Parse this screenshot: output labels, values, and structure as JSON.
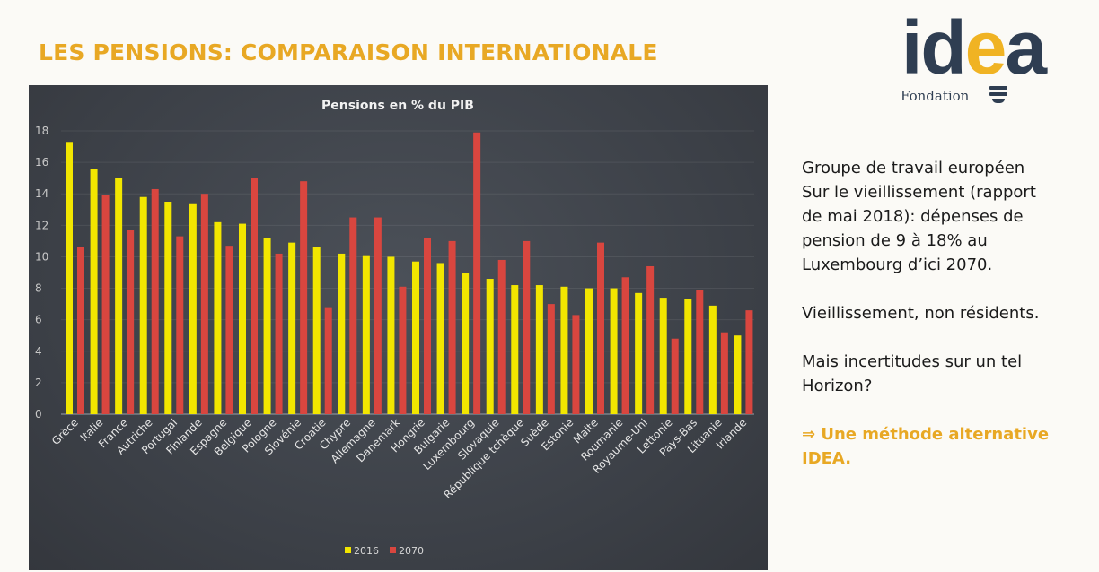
{
  "slide": {
    "title": "LES PENSIONS: COMPARAISON INTERNATIONALE",
    "logo": {
      "word_left": "id",
      "word_e": "e",
      "word_right": "a",
      "subtitle": "Fondation"
    },
    "side_text": {
      "p1": [
        "Groupe de travail européen",
        "Sur le vieillissement (rapport",
        "de mai 2018): dépenses de",
        "pension de 9 à 18% au",
        "Luxembourg d’ici 2070."
      ],
      "p2": "Vieillissement, non résidents.",
      "p3": [
        "Mais incertitudes sur un tel",
        "Horizon?"
      ],
      "p4": [
        "⇒ Une méthode alternative",
        "IDEA."
      ]
    }
  },
  "colors": {
    "accent": "#e8a824",
    "series2016": "#f2e600",
    "series2070": "#d9463f",
    "chart_bg": "#3e4249"
  },
  "chart_data": {
    "type": "bar",
    "title": "Pensions en % du PIB",
    "xlabel": "",
    "ylabel": "",
    "ylim": [
      0,
      18
    ],
    "yticks": [
      0,
      2,
      4,
      6,
      8,
      10,
      12,
      14,
      16,
      18
    ],
    "grid": true,
    "legend_position": "bottom",
    "categories": [
      "Grèce",
      "Italie",
      "France",
      "Autriche",
      "Portugal",
      "Finlande",
      "Espagne",
      "Belgique",
      "Pologne",
      "Slovénie",
      "Croatie",
      "Chypre",
      "Allemagne",
      "Danemark",
      "Hongrie",
      "Bulgarie",
      "Luxembourg",
      "Slovaquie",
      "République tchèque",
      "Suède",
      "Estonie",
      "Malte",
      "Roumanie",
      "Royaume-Uni",
      "Lettonie",
      "Pays-Bas",
      "Lituanie",
      "Irlande"
    ],
    "series": [
      {
        "name": "2016",
        "values": [
          17.3,
          15.6,
          15.0,
          13.8,
          13.5,
          13.4,
          12.2,
          12.1,
          11.2,
          10.9,
          10.6,
          10.2,
          10.1,
          10.0,
          9.7,
          9.6,
          9.0,
          8.6,
          8.2,
          8.2,
          8.1,
          8.0,
          8.0,
          7.7,
          7.4,
          7.3,
          6.9,
          5.0
        ]
      },
      {
        "name": "2070",
        "values": [
          10.6,
          13.9,
          11.7,
          14.3,
          11.3,
          14.0,
          10.7,
          15.0,
          10.2,
          14.8,
          6.8,
          12.5,
          12.5,
          8.1,
          11.2,
          11.0,
          17.9,
          9.8,
          11.0,
          7.0,
          6.3,
          10.9,
          8.7,
          9.4,
          4.8,
          7.9,
          5.2,
          6.6
        ]
      }
    ]
  }
}
